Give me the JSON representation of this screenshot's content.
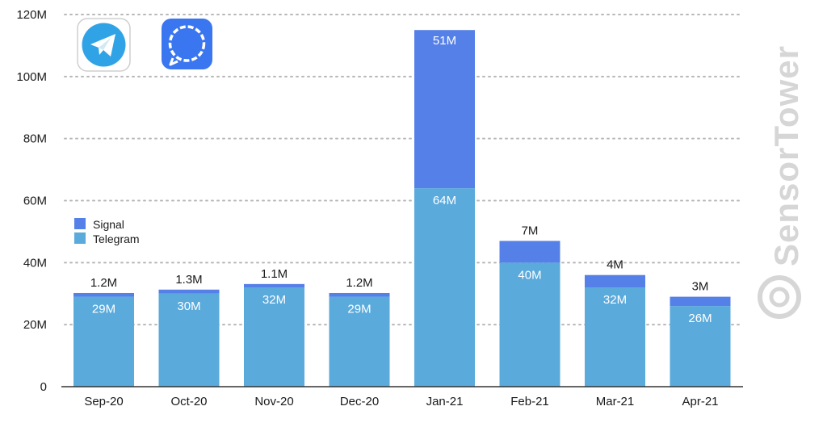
{
  "chart_data": {
    "type": "bar",
    "stacked": true,
    "categories": [
      "Sep-20",
      "Oct-20",
      "Nov-20",
      "Dec-20",
      "Jan-21",
      "Feb-21",
      "Mar-21",
      "Apr-21"
    ],
    "series": [
      {
        "name": "Telegram",
        "values": [
          29,
          30,
          32,
          29,
          64,
          40,
          32,
          26
        ],
        "labels": [
          "29M",
          "30M",
          "32M",
          "29M",
          "64M",
          "40M",
          "32M",
          "26M"
        ],
        "color": "#5aaadc"
      },
      {
        "name": "Signal",
        "values": [
          1.2,
          1.3,
          1.1,
          1.2,
          51,
          7,
          4,
          3
        ],
        "labels": [
          "1.2M",
          "1.3M",
          "1.1M",
          "1.2M",
          "51M",
          "7M",
          "4M",
          "3M"
        ],
        "color": "#5580e8"
      }
    ],
    "ylim": [
      0,
      120
    ],
    "yticks": [
      0,
      20,
      40,
      60,
      80,
      100,
      120
    ],
    "ytick_labels": [
      "0",
      "20M",
      "40M",
      "60M",
      "80M",
      "100M",
      "120M"
    ],
    "grid": true,
    "legend_position": "left",
    "xlabel": "",
    "ylabel": ""
  },
  "branding": {
    "watermark": "SensorTower",
    "app_icons": [
      "telegram-icon",
      "signal-icon"
    ],
    "telegram_color": "#30a3e6",
    "signal_color": "#3a76f0"
  }
}
